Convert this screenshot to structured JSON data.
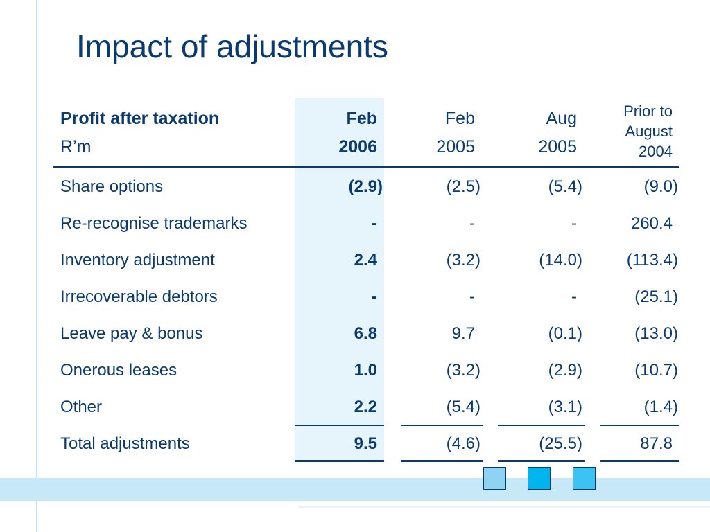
{
  "slide": {
    "title": "Impact of adjustments"
  },
  "table": {
    "header": {
      "label_line1": "Profit after taxation",
      "label_line2": "R’m",
      "col1_line1": "Feb",
      "col1_line2": "2006",
      "col2_line1": "Feb",
      "col2_line2": "2005",
      "col3_line1": "Aug",
      "col3_line2": "2005",
      "col4_line1": "Prior to",
      "col4_line2": "August",
      "col4_line3": "2004"
    },
    "rows": [
      {
        "label": "Share options",
        "c1": "(2.9)",
        "c2": "(2.5)",
        "c3": "(5.4)",
        "c4": "(9.0)"
      },
      {
        "label": "Re-recognise trademarks",
        "c1": "-",
        "c2": "-",
        "c3": "-",
        "c4": "260.4"
      },
      {
        "label": "Inventory adjustment",
        "c1": "2.4",
        "c2": "(3.2)",
        "c3": "(14.0)",
        "c4": "(113.4)"
      },
      {
        "label": "Irrecoverable debtors",
        "c1": "-",
        "c2": "-",
        "c3": "-",
        "c4": "(25.1)"
      },
      {
        "label": "Leave pay & bonus",
        "c1": "6.8",
        "c2": "9.7",
        "c3": "(0.1)",
        "c4": "(13.0)"
      },
      {
        "label": "Onerous leases",
        "c1": "1.0",
        "c2": "(3.2)",
        "c3": "(2.9)",
        "c4": "(10.7)"
      },
      {
        "label": "Other",
        "c1": "2.2",
        "c2": "(5.4)",
        "c3": "(3.1)",
        "c4": "(1.4)"
      },
      {
        "label": "Total adjustments",
        "c1": "9.5",
        "c2": "(4.6)",
        "c3": "(25.5)",
        "c4": "87.8"
      }
    ]
  },
  "colors": {
    "text": "#0b3a6e",
    "highlight_column": "#e6f4fb",
    "band": "#c6e8f7",
    "square_light": "#8fd3f2",
    "square_bright": "#00b4ee",
    "square_mid": "#3cc3f3"
  }
}
